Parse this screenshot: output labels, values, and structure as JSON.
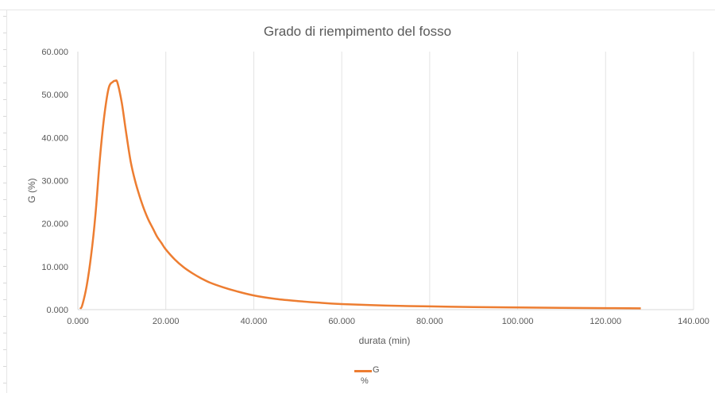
{
  "chart_data": {
    "type": "line",
    "title": "Grado di riempimento del fosso",
    "xlabel": "durata (min)",
    "ylabel": "G (%)",
    "xlim": [
      0,
      140
    ],
    "ylim": [
      0,
      60
    ],
    "x_ticks": [
      "0.000",
      "20.000",
      "40.000",
      "60.000",
      "80.000",
      "100.000",
      "120.000",
      "140.000"
    ],
    "y_ticks": [
      "0.000",
      "10.000",
      "20.000",
      "30.000",
      "40.000",
      "50.000",
      "60.000"
    ],
    "grid": "vertical",
    "legend": "bottom",
    "series": [
      {
        "name": "G",
        "unit": "%",
        "color": "#ED7D31",
        "x": [
          0.5,
          1,
          2,
          3,
          4,
          5,
          6,
          7,
          8,
          8.5,
          9,
          10,
          11,
          12,
          13,
          14,
          15,
          16,
          17,
          18,
          19,
          20,
          22,
          24,
          26,
          28,
          30,
          33,
          36,
          40,
          45,
          50,
          55,
          60,
          70,
          80,
          90,
          100,
          110,
          120,
          128
        ],
        "y": [
          0.2,
          1.0,
          5.5,
          12.5,
          22.0,
          35.0,
          45.0,
          51.5,
          53.0,
          53.2,
          52.8,
          48.0,
          41.0,
          34.5,
          30.0,
          26.5,
          23.5,
          21.0,
          19.0,
          17.0,
          15.5,
          14.0,
          11.7,
          9.9,
          8.5,
          7.3,
          6.3,
          5.2,
          4.3,
          3.3,
          2.5,
          2.0,
          1.6,
          1.3,
          0.95,
          0.75,
          0.6,
          0.5,
          0.42,
          0.35,
          0.3
        ]
      }
    ]
  }
}
